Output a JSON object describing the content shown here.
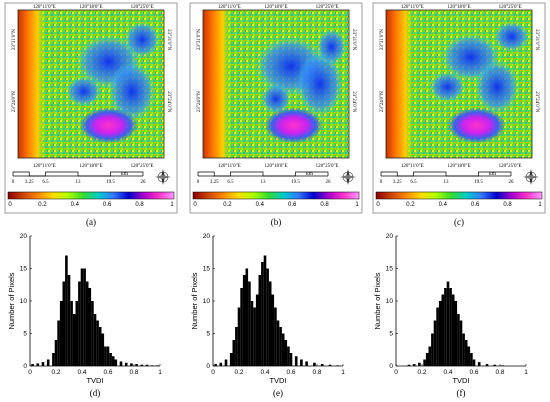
{
  "colorbar": {
    "ticks": [
      "0",
      "0.2",
      "0.4",
      "0.6",
      "0.8",
      "1"
    ],
    "stops": [
      "#8b0000",
      "#cc4400",
      "#ff8800",
      "#ffdd00",
      "#aaff00",
      "#33dd33",
      "#00cccc",
      "#3377ff",
      "#0000cc",
      "#aa00cc",
      "#ff33cc",
      "#ff99ff"
    ]
  },
  "scale_bar": {
    "ticks": [
      "0",
      "3.25",
      "6.5",
      "13",
      "19.5",
      "26"
    ],
    "unit": "km"
  },
  "map_labels": {
    "longitudes": [
      "120°11'0\"E",
      "120°18'0\"E",
      "120°25'0\"E"
    ],
    "latitudes_left": [
      "23°31'0\"N",
      "23°24'0\"N"
    ],
    "latitudes_right": [
      "23°31'0\"N",
      "23°24'0\"N"
    ]
  },
  "captions": [
    "(a)",
    "(b)",
    "(c)",
    "(d)",
    "(e)",
    "(f)"
  ],
  "chart_data": [
    {
      "type": "bar",
      "panel": "(d)",
      "xlabel": "TVDI",
      "ylabel": "Number of Pixels",
      "xlim": [
        0,
        1
      ],
      "ylim": [
        0,
        20
      ],
      "xticks": [
        "0",
        "0.2",
        "0.4",
        "0.6",
        "0.8",
        "1"
      ],
      "yticks": [
        "0",
        "5",
        "10",
        "15",
        "20"
      ],
      "x": [
        0.02,
        0.06,
        0.1,
        0.14,
        0.18,
        0.2,
        0.22,
        0.24,
        0.26,
        0.28,
        0.3,
        0.32,
        0.34,
        0.36,
        0.38,
        0.4,
        0.42,
        0.44,
        0.46,
        0.48,
        0.5,
        0.52,
        0.54,
        0.56,
        0.58,
        0.6,
        0.62,
        0.64,
        0.66,
        0.7,
        0.74,
        0.78,
        0.82,
        0.86,
        0.9,
        0.94,
        0.98
      ],
      "values": [
        0.3,
        0.4,
        0.6,
        1,
        2,
        4,
        7,
        10,
        13,
        17,
        14,
        10,
        8,
        10,
        13,
        15,
        15,
        13,
        12,
        10,
        8,
        7,
        6,
        5,
        3,
        3,
        2,
        1.5,
        1,
        0.7,
        0.5,
        0.4,
        0.3,
        0.2,
        0.2,
        0.1,
        0.1
      ]
    },
    {
      "type": "bar",
      "panel": "(e)",
      "xlabel": "TVDI",
      "ylabel": "Number of Pixels",
      "xlim": [
        0,
        1
      ],
      "ylim": [
        0,
        20
      ],
      "xticks": [
        "0",
        "0.2",
        "0.4",
        "0.6",
        "0.8",
        "1"
      ],
      "yticks": [
        "0",
        "5",
        "10",
        "15",
        "20"
      ],
      "x": [
        0.02,
        0.06,
        0.1,
        0.14,
        0.16,
        0.18,
        0.2,
        0.22,
        0.24,
        0.26,
        0.28,
        0.3,
        0.32,
        0.34,
        0.36,
        0.38,
        0.4,
        0.42,
        0.44,
        0.46,
        0.48,
        0.5,
        0.52,
        0.54,
        0.56,
        0.58,
        0.6,
        0.64,
        0.68,
        0.72,
        0.78,
        0.84,
        0.9,
        0.96
      ],
      "values": [
        0.3,
        0.5,
        1,
        2,
        4,
        6,
        9,
        12,
        14,
        15,
        13,
        10,
        9,
        11,
        14,
        16,
        17,
        15,
        13,
        11,
        9,
        7,
        6,
        5,
        4,
        3,
        2,
        1.5,
        1,
        0.7,
        0.5,
        0.3,
        0.2,
        0.1
      ]
    },
    {
      "type": "bar",
      "panel": "(f)",
      "xlabel": "TVDI",
      "ylabel": "Number of Pixels",
      "xlim": [
        0,
        1
      ],
      "ylim": [
        0,
        20
      ],
      "xticks": [
        "0",
        "0.2",
        "0.4",
        "0.6",
        "0.8",
        "1"
      ],
      "yticks": [
        "0",
        "5",
        "10",
        "15",
        "20"
      ],
      "x": [
        0.1,
        0.14,
        0.18,
        0.22,
        0.24,
        0.26,
        0.28,
        0.3,
        0.32,
        0.34,
        0.36,
        0.38,
        0.4,
        0.42,
        0.44,
        0.46,
        0.48,
        0.5,
        0.52,
        0.54,
        0.56,
        0.58,
        0.6,
        0.64,
        0.7,
        0.76,
        0.82
      ],
      "values": [
        0.2,
        0.3,
        0.5,
        1,
        2,
        3,
        5,
        7,
        9,
        10,
        11,
        12,
        13,
        12,
        11,
        10,
        8,
        7,
        5,
        4,
        3,
        2,
        1,
        0.6,
        0.3,
        0.2,
        0.1
      ]
    }
  ]
}
